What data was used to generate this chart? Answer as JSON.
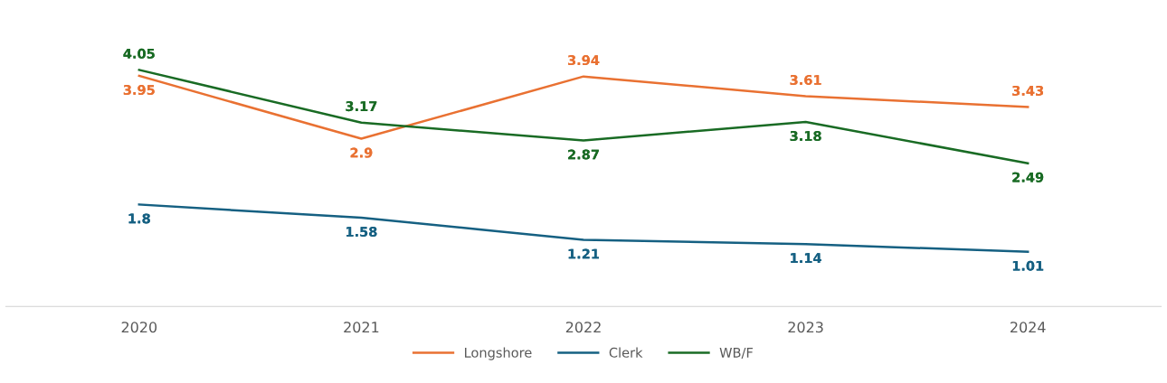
{
  "chart_data": {
    "type": "line",
    "categories": [
      "2020",
      "2021",
      "2022",
      "2023",
      "2024"
    ],
    "series": [
      {
        "name": "Longshore",
        "color": "#e97132",
        "values": [
          3.95,
          2.9,
          3.94,
          3.61,
          3.43
        ]
      },
      {
        "name": "Clerk",
        "color": "#156082",
        "values": [
          1.8,
          1.58,
          1.21,
          1.14,
          1.01
        ]
      },
      {
        "name": "WB/F",
        "color": "#196b24",
        "values": [
          4.05,
          3.17,
          2.87,
          3.18,
          2.49
        ]
      }
    ],
    "tick_labels": "x",
    "data_labels": true,
    "legend": "bottom",
    "grid": false,
    "line_style": "solid"
  }
}
